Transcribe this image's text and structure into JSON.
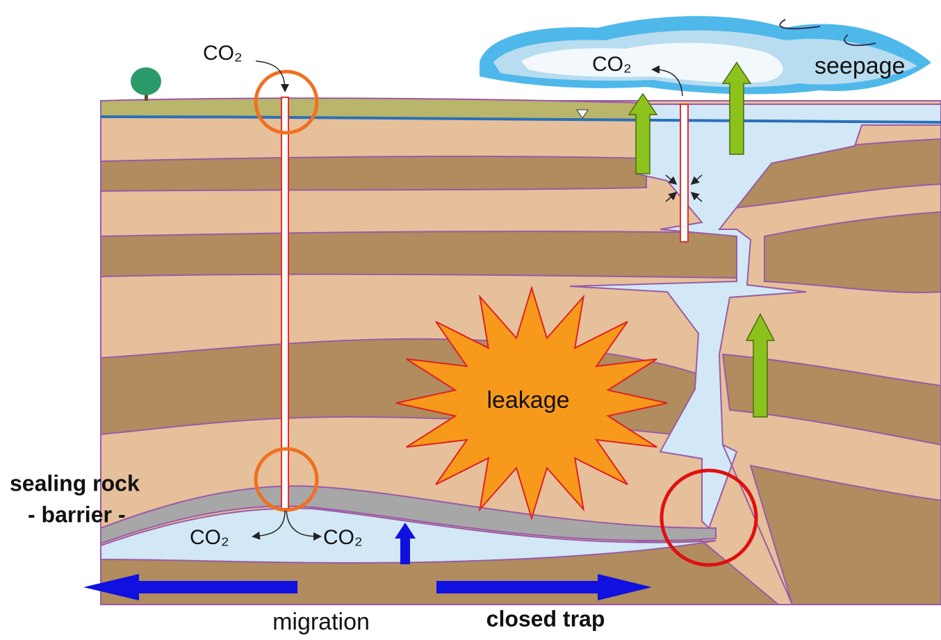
{
  "labels": {
    "co2": [
      "CO₂",
      "CO₂",
      "CO₂",
      "CO₂"
    ],
    "seepage": "seepage",
    "leakage": "leakage",
    "sealing_rock": [
      "sealing rock",
      "- barrier -"
    ],
    "migration": "migration",
    "closed_trap": "closed trap"
  }
}
